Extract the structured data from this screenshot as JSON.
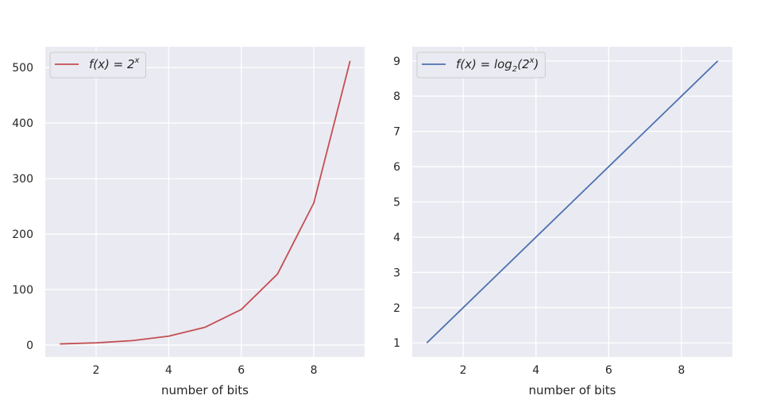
{
  "chart_data": [
    {
      "type": "line",
      "title": "",
      "xlabel": "number of bits",
      "ylabel": "",
      "x": [
        1,
        2,
        3,
        4,
        5,
        6,
        7,
        8,
        9
      ],
      "series": [
        {
          "name": "f(x) = 2^x",
          "legend_main": "f(x) = 2",
          "legend_sup": "x",
          "legend_sub": "",
          "legend_tail": "",
          "color": "#c44e52",
          "values": [
            2,
            4,
            8,
            16,
            32,
            64,
            128,
            256,
            512
          ]
        }
      ],
      "xlim": [
        0.6,
        9.4
      ],
      "ylim": [
        -21.5,
        537.5
      ],
      "xticks": [
        2,
        4,
        6,
        8
      ],
      "yticks": [
        0,
        100,
        200,
        300,
        400,
        500
      ],
      "grid": true,
      "background": "#eaeaf2",
      "legend_position": "top-left"
    },
    {
      "type": "line",
      "title": "",
      "xlabel": "number of bits",
      "ylabel": "",
      "x": [
        1,
        2,
        3,
        4,
        5,
        6,
        7,
        8,
        9
      ],
      "series": [
        {
          "name": "f(x) = log2(2^x)",
          "legend_main": "f(x) = log",
          "legend_sub": "2",
          "legend_mid": "(2",
          "legend_sup": "x",
          "legend_tail": ")",
          "color": "#4c72b0",
          "values": [
            1,
            2,
            3,
            4,
            5,
            6,
            7,
            8,
            9
          ]
        }
      ],
      "xlim": [
        0.6,
        9.4
      ],
      "ylim": [
        0.6,
        9.4
      ],
      "xticks": [
        2,
        4,
        6,
        8
      ],
      "yticks": [
        1,
        2,
        3,
        4,
        5,
        6,
        7,
        8,
        9
      ],
      "grid": true,
      "background": "#eaeaf2",
      "legend_position": "top-left"
    }
  ]
}
